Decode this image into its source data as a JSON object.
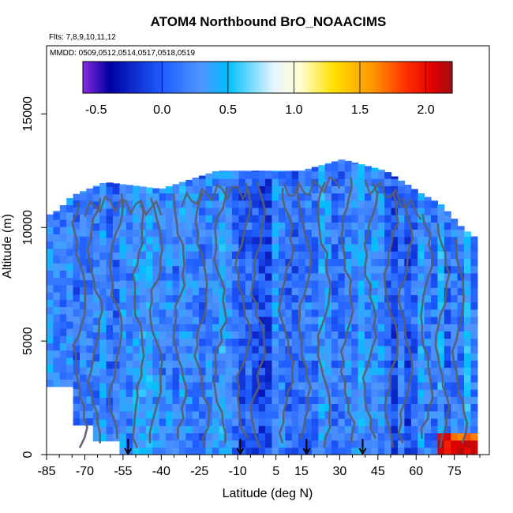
{
  "chart_data": {
    "type": "heatmap",
    "title": "ATOM4 Northbound BrO_NOAACIMS",
    "flights_text": "Flts: 7,8,9,10,11,12",
    "dates_text": "MMDD: 0509,0512,0514,0517,0518,0519",
    "xlabel": "Latitude (deg N)",
    "ylabel": "Altitude (m)",
    "xlim": [
      -85,
      85
    ],
    "ylim": [
      0,
      18000
    ],
    "x_ticks": [
      -85,
      -70,
      -55,
      -40,
      -25,
      -10,
      5,
      15,
      30,
      45,
      60,
      75
    ],
    "y_ticks": [
      0,
      5000,
      10000,
      15000
    ],
    "colorbar": {
      "range": [
        -0.6,
        2.2
      ],
      "ticks": [
        -0.5,
        0.0,
        0.5,
        1.0,
        1.5,
        2.0
      ],
      "tick_labels": [
        "-0.5",
        "0.0",
        "0.5",
        "1.0",
        "1.5",
        "2.0"
      ],
      "colors": [
        "#8a2be2",
        "#0000a0",
        "#1e5cff",
        "#5aa0ff",
        "#00bfff",
        "#e8f4ff",
        "#ffffd0",
        "#ffe000",
        "#ffa000",
        "#ff3000",
        "#e00000",
        "#a01010"
      ]
    },
    "flight_markers_lat": [
      -53,
      -9,
      17,
      39
    ],
    "profile_extent": [
      {
        "lat": -85,
        "top": 10500
      },
      {
        "lat": -80,
        "top": 10800
      },
      {
        "lat": -75,
        "top": 11400
      },
      {
        "lat": -62,
        "top": 12000
      },
      {
        "lat": -40,
        "top": 11700
      },
      {
        "lat": -18,
        "top": 12500
      },
      {
        "lat": 15,
        "top": 12500
      },
      {
        "lat": 31,
        "top": 13000
      },
      {
        "lat": 48,
        "top": 12500
      },
      {
        "lat": 62,
        "top": 11500
      },
      {
        "lat": 70,
        "top": 11000
      },
      {
        "lat": 78,
        "top": 10000
      },
      {
        "lat": 84,
        "top": 9500
      }
    ]
  }
}
